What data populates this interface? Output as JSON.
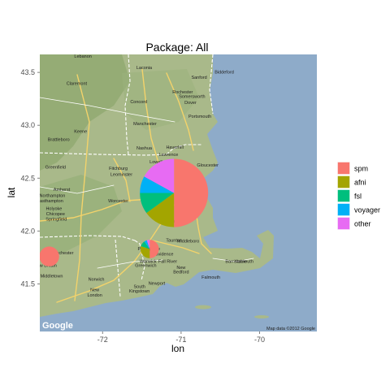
{
  "chart_data": {
    "type": "pie",
    "title": "Package: All",
    "xlabel": "lon",
    "ylabel": "lat",
    "xlim": [
      -72.8,
      -69.27
    ],
    "ylim": [
      41.05,
      43.67
    ],
    "x_ticks": [
      -72,
      -71,
      -70
    ],
    "x_tick_labels": [
      "-72",
      "-71",
      "-70"
    ],
    "y_ticks": [
      41.5,
      42.0,
      42.5,
      43.0,
      43.5
    ],
    "y_tick_labels": [
      "41.5",
      "42.0",
      "42.5",
      "43.0",
      "43.5"
    ],
    "grid": false,
    "legend_position": "right",
    "legend": [
      {
        "label": "spm",
        "color": "#F8766D"
      },
      {
        "label": "afni",
        "color": "#A3A500"
      },
      {
        "label": "fsl",
        "color": "#00BF7D"
      },
      {
        "label": "voyager",
        "color": "#00B0F6"
      },
      {
        "label": "other",
        "color": "#E76BF3"
      }
    ],
    "pies": [
      {
        "lon": -71.09,
        "lat": 42.36,
        "relative_size": 1.0,
        "fractions": {
          "spm": 0.5,
          "afni": 0.15,
          "fsl": 0.1,
          "voyager": 0.08,
          "other": 0.17
        }
      },
      {
        "lon": -71.4,
        "lat": 41.83,
        "relative_size": 0.27,
        "fractions": {
          "spm": 0.5,
          "afni": 0.3,
          "fsl": 0.1,
          "voyager": 0.05,
          "other": 0.05
        }
      },
      {
        "lon": -72.68,
        "lat": 41.76,
        "relative_size": 0.29,
        "fractions": {
          "spm": 1.0,
          "afni": 0.0,
          "fsl": 0.0,
          "voyager": 0.0,
          "other": 0.0
        }
      }
    ]
  },
  "map": {
    "provider_logo": "Google",
    "attribution": "Map data ©2012 Google",
    "towns": [
      {
        "name": "Lebanon",
        "lon": -72.25,
        "lat": 43.64
      },
      {
        "name": "Laconia",
        "lon": -71.47,
        "lat": 43.53
      },
      {
        "name": "Biddeford",
        "lon": -70.45,
        "lat": 43.49
      },
      {
        "name": "Claremont",
        "lon": -72.33,
        "lat": 43.38
      },
      {
        "name": "Sanford",
        "lon": -70.77,
        "lat": 43.44
      },
      {
        "name": "Rochester",
        "lon": -70.98,
        "lat": 43.3
      },
      {
        "name": "Concord",
        "lon": -71.54,
        "lat": 43.21
      },
      {
        "name": "Somersworth",
        "lon": -70.86,
        "lat": 43.26
      },
      {
        "name": "Dover",
        "lon": -70.88,
        "lat": 43.2
      },
      {
        "name": "Portsmouth",
        "lon": -70.76,
        "lat": 43.07
      },
      {
        "name": "Manchester",
        "lon": -71.46,
        "lat": 43.0
      },
      {
        "name": "Keene",
        "lon": -72.28,
        "lat": 42.93
      },
      {
        "name": "Brattleboro",
        "lon": -72.56,
        "lat": 42.85
      },
      {
        "name": "Nashua",
        "lon": -71.47,
        "lat": 42.77
      },
      {
        "name": "Haverhill",
        "lon": -71.08,
        "lat": 42.78
      },
      {
        "name": "Lawrence",
        "lon": -71.16,
        "lat": 42.71
      },
      {
        "name": "Lowell",
        "lon": -71.32,
        "lat": 42.64
      },
      {
        "name": "Greenfield",
        "lon": -72.6,
        "lat": 42.59
      },
      {
        "name": "Fitchburg",
        "lon": -71.8,
        "lat": 42.58
      },
      {
        "name": "Gloucester",
        "lon": -70.66,
        "lat": 42.61
      },
      {
        "name": "Leominster",
        "lon": -71.76,
        "lat": 42.52
      },
      {
        "name": "Amherst",
        "lon": -72.52,
        "lat": 42.38
      },
      {
        "name": "Worcester",
        "lon": -71.8,
        "lat": 42.27
      },
      {
        "name": "Northampton",
        "lon": -72.64,
        "lat": 42.32
      },
      {
        "name": "Easthampton",
        "lon": -72.67,
        "lat": 42.27
      },
      {
        "name": "Holyoke",
        "lon": -72.62,
        "lat": 42.2
      },
      {
        "name": "Chicopee",
        "lon": -72.6,
        "lat": 42.15
      },
      {
        "name": "Springfield",
        "lon": -72.59,
        "lat": 42.1
      },
      {
        "name": "Brockton",
        "lon": -71.02,
        "lat": 42.08
      },
      {
        "name": "Taunton",
        "lon": -71.09,
        "lat": 41.9
      },
      {
        "name": "Middleboro",
        "lon": -70.91,
        "lat": 41.89
      },
      {
        "name": "Manchester",
        "lon": -72.52,
        "lat": 41.78
      },
      {
        "name": "Providence",
        "lon": -71.41,
        "lat": 41.82
      },
      {
        "name": "East",
        "lon": -71.37,
        "lat": 41.81
      },
      {
        "name": "Providence",
        "lon": -71.24,
        "lat": 41.77
      },
      {
        "name": "New Britain",
        "lon": -72.73,
        "lat": 41.66
      },
      {
        "name": "Warwick",
        "lon": -71.42,
        "lat": 41.7
      },
      {
        "name": "Greenwich",
        "lon": -71.45,
        "lat": 41.66
      },
      {
        "name": "Fall River",
        "lon": -71.17,
        "lat": 41.7
      },
      {
        "name": "Barnstable",
        "lon": -70.3,
        "lat": 41.7
      },
      {
        "name": "Yarmouth",
        "lon": -70.2,
        "lat": 41.7
      },
      {
        "name": "Middletown",
        "lon": -72.65,
        "lat": 41.56
      },
      {
        "name": "Norwich",
        "lon": -72.08,
        "lat": 41.53
      },
      {
        "name": "New",
        "lon": -71.0,
        "lat": 41.64
      },
      {
        "name": "Bedford",
        "lon": -71.0,
        "lat": 41.6
      },
      {
        "name": "Falmouth",
        "lon": -70.62,
        "lat": 41.55
      },
      {
        "name": "South",
        "lon": -71.53,
        "lat": 41.46
      },
      {
        "name": "Kingstown",
        "lon": -71.53,
        "lat": 41.42
      },
      {
        "name": "Newport",
        "lon": -71.31,
        "lat": 41.49
      },
      {
        "name": "New",
        "lon": -72.1,
        "lat": 41.43
      },
      {
        "name": "London",
        "lon": -72.1,
        "lat": 41.38
      }
    ]
  }
}
